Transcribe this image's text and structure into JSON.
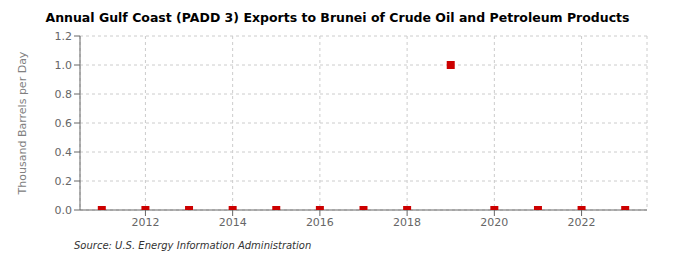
{
  "chart_data": {
    "type": "scatter",
    "title": "Annual Gulf Coast (PADD 3) Exports to Brunei of Crude Oil and Petroleum Products",
    "ylabel": "Thousand Barrels per Day",
    "annotations": [
      "Source: U.S. Energy Information Administration"
    ],
    "x": [
      2011,
      2012,
      2013,
      2014,
      2015,
      2016,
      2017,
      2018,
      2019,
      2020,
      2021,
      2022,
      2023
    ],
    "values": [
      0.0,
      0.0,
      0.0,
      0.0,
      0.0,
      0.0,
      0.0,
      0.0,
      1.0,
      0.0,
      0.0,
      0.0,
      0.0
    ],
    "color": "#cc0000",
    "marker": "square",
    "xlim": [
      2010.5,
      2023.5
    ],
    "xticks": [
      2012,
      2014,
      2016,
      2018,
      2020,
      2022
    ],
    "ylim": [
      0.0,
      1.2
    ],
    "yticks": [
      {
        "value": 0.0,
        "label": "0.0"
      },
      0.2,
      0.4,
      0.6,
      0.8,
      {
        "value": 1.0,
        "label": "1.0"
      },
      1.2
    ],
    "grid": true
  }
}
